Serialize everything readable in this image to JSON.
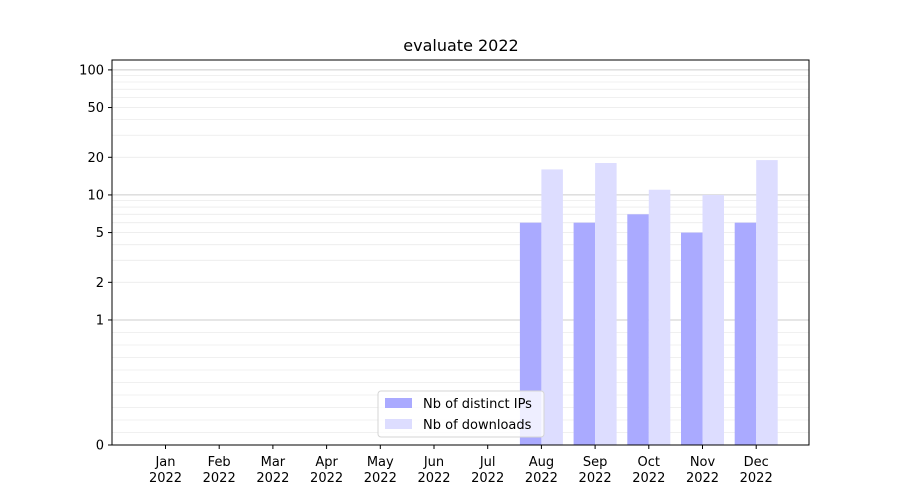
{
  "chart_data": {
    "type": "bar",
    "title": "evaluate 2022",
    "xlabel": "",
    "ylabel": "",
    "categories": [
      [
        "Jan",
        "2022"
      ],
      [
        "Feb",
        "2022"
      ],
      [
        "Mar",
        "2022"
      ],
      [
        "Apr",
        "2022"
      ],
      [
        "May",
        "2022"
      ],
      [
        "Jun",
        "2022"
      ],
      [
        "Jul",
        "2022"
      ],
      [
        "Aug",
        "2022"
      ],
      [
        "Sep",
        "2022"
      ],
      [
        "Oct",
        "2022"
      ],
      [
        "Nov",
        "2022"
      ],
      [
        "Dec",
        "2022"
      ]
    ],
    "series": [
      {
        "name": "Nb of distinct IPs",
        "color": "#aaaaff",
        "values": [
          0,
          0,
          0,
          0,
          0,
          0,
          0,
          6,
          6,
          7,
          5,
          6
        ]
      },
      {
        "name": "Nb of downloads",
        "color": "#ddddff",
        "values": [
          0,
          0,
          0,
          0,
          0,
          0,
          0,
          16,
          18,
          11,
          10,
          19
        ]
      }
    ],
    "yscale": "symlog",
    "ylim": [
      0,
      120
    ],
    "yticks": [
      0,
      1,
      2,
      5,
      10,
      20,
      50,
      100
    ],
    "ytick_labels": [
      "0",
      "1",
      "2",
      "5",
      "10",
      "20",
      "50",
      "100"
    ],
    "grid": true,
    "legend_position": "lower-center"
  }
}
